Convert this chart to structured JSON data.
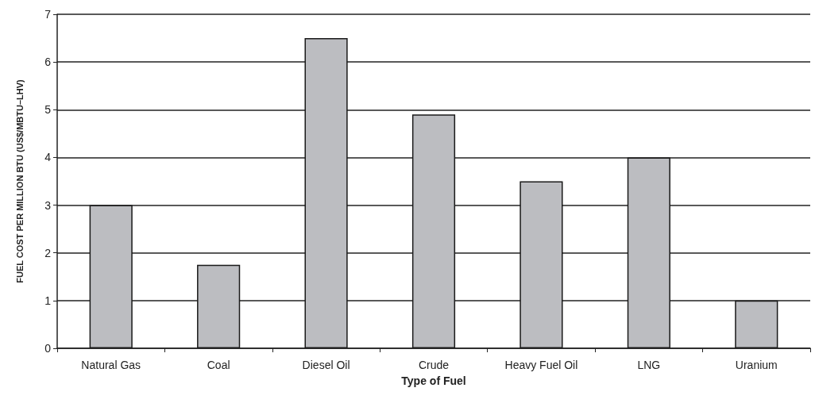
{
  "chart_data": {
    "type": "bar",
    "xlabel": "Type of Fuel",
    "ylabel": "FUEL COST PER MILLION BTU (US$/MBTU–LHV)",
    "categories": [
      "Natural Gas",
      "Coal",
      "Diesel Oil",
      "Crude",
      "Heavy Fuel Oil",
      "LNG",
      "Uranium"
    ],
    "values": [
      3,
      1.75,
      6.5,
      4.9,
      3.5,
      4,
      1
    ],
    "color": "#bcbdc1",
    "ylim": [
      0,
      7
    ],
    "yticks": [
      0,
      1,
      2,
      3,
      4,
      5,
      6,
      7
    ],
    "grid": "y"
  }
}
